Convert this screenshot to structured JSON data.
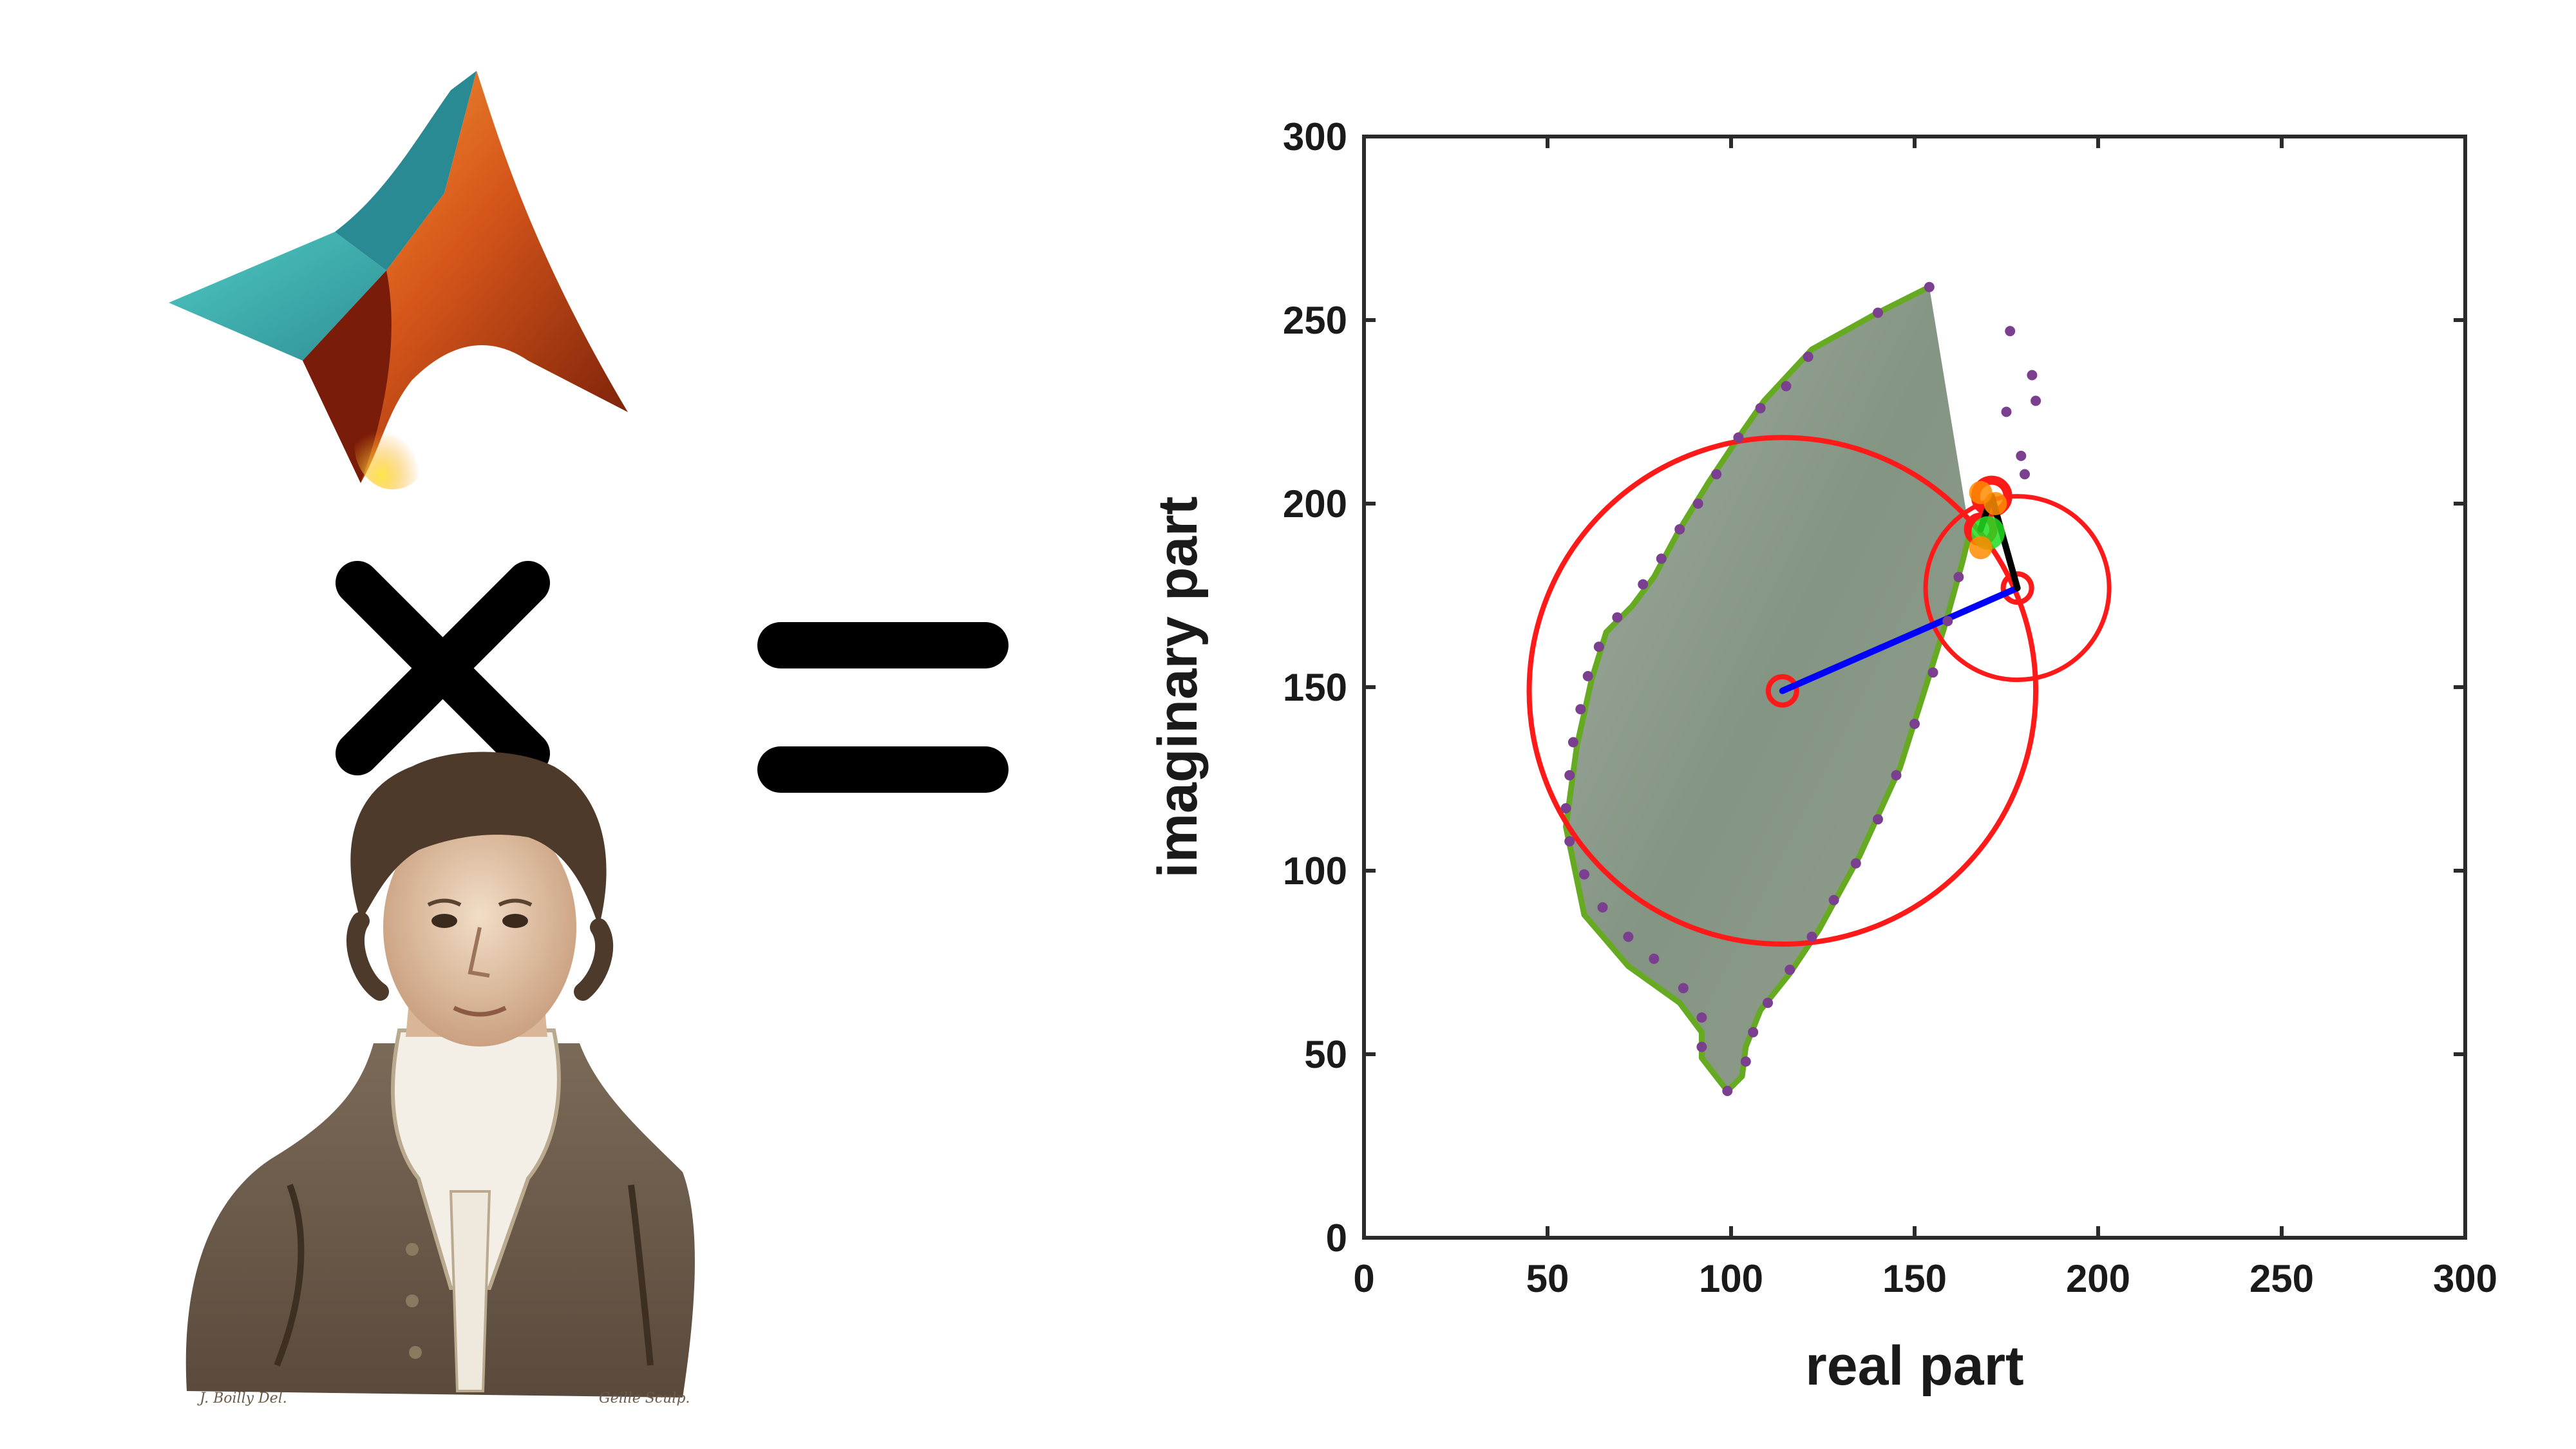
{
  "composition": {
    "left_top_image": "matlab-logo",
    "operator": "times",
    "left_bottom_image": "fourier-portrait",
    "result_operator": "equals"
  },
  "portrait": {
    "credit_left": "J. Boilly Del.",
    "credit_right": "Geille Sculp."
  },
  "colors": {
    "circle": "#ff1a1a",
    "arm_first": "#0000ff",
    "arm_rest": "#000000",
    "outline": "#66aa22",
    "dots": "#7b3f8f",
    "tip": "#ff8c00",
    "center_marker": "#22dd22"
  },
  "chart_data": {
    "type": "line",
    "title": "",
    "xlabel": "real part",
    "ylabel": "imaginary part",
    "xlim": [
      0,
      300
    ],
    "ylim": [
      0,
      300
    ],
    "xticks": [
      "0",
      "50",
      "100",
      "150",
      "200",
      "250",
      "300"
    ],
    "yticks": [
      "0",
      "50",
      "100",
      "150",
      "200",
      "250",
      "300"
    ],
    "grid": false,
    "legend": "none",
    "background_image": "taiwan-satellite-map",
    "series": [
      {
        "kind": "epicycle-circles",
        "centers": [
          [
            114,
            149
          ],
          [
            178,
            177
          ],
          [
            171,
            202
          ],
          [
            168,
            193
          ]
        ],
        "radii": [
          69,
          25,
          5,
          3
        ]
      },
      {
        "kind": "epicycle-arms",
        "points": [
          [
            114,
            149
          ],
          [
            178,
            177
          ],
          [
            171,
            202
          ],
          [
            168,
            193
          ]
        ]
      },
      {
        "kind": "drawn-outline",
        "points": [
          [
            154,
            259
          ],
          [
            140,
            252
          ],
          [
            122,
            242
          ],
          [
            109,
            228
          ],
          [
            102,
            218
          ],
          [
            94,
            206
          ],
          [
            86,
            193
          ],
          [
            79,
            180
          ],
          [
            73,
            172
          ],
          [
            66,
            165
          ],
          [
            62,
            152
          ],
          [
            58,
            134
          ],
          [
            55,
            112
          ],
          [
            60,
            88
          ],
          [
            72,
            74
          ],
          [
            86,
            64
          ],
          [
            92,
            56
          ],
          [
            92,
            49
          ],
          [
            99,
            40
          ],
          [
            103,
            44
          ],
          [
            104,
            52
          ],
          [
            108,
            62
          ],
          [
            116,
            72
          ],
          [
            124,
            84
          ],
          [
            135,
            104
          ],
          [
            146,
            128
          ],
          [
            153,
            150
          ],
          [
            158,
            166
          ],
          [
            163,
            184
          ],
          [
            165,
            192
          ]
        ]
      },
      {
        "kind": "sample-points",
        "points": [
          [
            154,
            259
          ],
          [
            140,
            252
          ],
          [
            121,
            240
          ],
          [
            115,
            232
          ],
          [
            108,
            226
          ],
          [
            102,
            218
          ],
          [
            96,
            208
          ],
          [
            91,
            200
          ],
          [
            86,
            193
          ],
          [
            81,
            185
          ],
          [
            76,
            178
          ],
          [
            69,
            169
          ],
          [
            64,
            161
          ],
          [
            61,
            153
          ],
          [
            59,
            144
          ],
          [
            57,
            135
          ],
          [
            56,
            126
          ],
          [
            55,
            117
          ],
          [
            56,
            108
          ],
          [
            60,
            99
          ],
          [
            65,
            90
          ],
          [
            72,
            82
          ],
          [
            79,
            76
          ],
          [
            87,
            68
          ],
          [
            92,
            60
          ],
          [
            92,
            52
          ],
          [
            99,
            40
          ],
          [
            104,
            48
          ],
          [
            106,
            56
          ],
          [
            110,
            64
          ],
          [
            116,
            73
          ],
          [
            122,
            82
          ],
          [
            128,
            92
          ],
          [
            134,
            102
          ],
          [
            140,
            114
          ],
          [
            145,
            126
          ],
          [
            150,
            140
          ],
          [
            155,
            154
          ],
          [
            159,
            168
          ],
          [
            162,
            180
          ],
          [
            176,
            247
          ],
          [
            182,
            235
          ],
          [
            183,
            228
          ],
          [
            180,
            208
          ],
          [
            179,
            213
          ],
          [
            175,
            225
          ]
        ]
      },
      {
        "kind": "tip",
        "points": [
          [
            170,
            192
          ],
          [
            172,
            200
          ],
          [
            168,
            203
          ],
          [
            168,
            188
          ]
        ]
      }
    ]
  }
}
